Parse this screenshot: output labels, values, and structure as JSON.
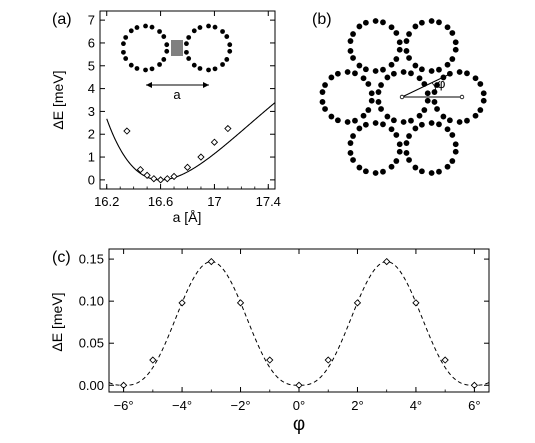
{
  "chart_data": [
    {
      "panel": "(a)",
      "type": "scatter",
      "xlabel": "a [Å]",
      "ylabel": "ΔE [meV]",
      "xlim": [
        16.15,
        17.45
      ],
      "ylim": [
        -0.4,
        7.4
      ],
      "xticks": [
        16.2,
        16.6,
        17,
        17.4
      ],
      "xtick_labels": [
        "16.2",
        "16.6",
        "17",
        "17.4"
      ],
      "yticks": [
        0,
        1,
        2,
        3,
        4,
        5,
        6,
        7
      ],
      "ytick_labels": [
        "0",
        "1",
        "2",
        "3",
        "4",
        "5",
        "6",
        "7"
      ],
      "points": [
        {
          "x": 16.35,
          "y": 2.14
        },
        {
          "x": 16.45,
          "y": 0.45
        },
        {
          "x": 16.5,
          "y": 0.2
        },
        {
          "x": 16.55,
          "y": 0.05
        },
        {
          "x": 16.6,
          "y": 0.0
        },
        {
          "x": 16.65,
          "y": 0.05
        },
        {
          "x": 16.7,
          "y": 0.15
        },
        {
          "x": 16.8,
          "y": 0.55
        },
        {
          "x": 16.9,
          "y": 1.0
        },
        {
          "x": 17.0,
          "y": 1.65
        },
        {
          "x": 17.1,
          "y": 2.25
        }
      ],
      "fit_curve": "solid",
      "inset_label": "a",
      "grid": false
    },
    {
      "panel": "(b)",
      "type": "diagram",
      "angle_label": "φ"
    },
    {
      "panel": "(c)",
      "type": "scatter",
      "xlabel": "φ",
      "ylabel": "ΔE [meV]",
      "xlim": [
        -6.5,
        6.5
      ],
      "ylim": [
        -0.008,
        0.162
      ],
      "xticks": [
        -6,
        -4,
        -2,
        0,
        2,
        4,
        6
      ],
      "xtick_labels": [
        "−6°",
        "−4°",
        "−2°",
        "0°",
        "2°",
        "4°",
        "6°"
      ],
      "yticks": [
        0,
        0.05,
        0.1,
        0.15
      ],
      "ytick_labels": [
        "0.00",
        "0.05",
        "0.10",
        "0.15"
      ],
      "points": [
        {
          "x": -6,
          "y": 0.0
        },
        {
          "x": -5,
          "y": 0.03
        },
        {
          "x": -4,
          "y": 0.098
        },
        {
          "x": -3,
          "y": 0.147
        },
        {
          "x": -2,
          "y": 0.098
        },
        {
          "x": -1,
          "y": 0.03
        },
        {
          "x": 0,
          "y": 0.0
        },
        {
          "x": 1,
          "y": 0.03
        },
        {
          "x": 2,
          "y": 0.098
        },
        {
          "x": 3,
          "y": 0.147
        },
        {
          "x": 4,
          "y": 0.098
        },
        {
          "x": 5,
          "y": 0.03
        },
        {
          "x": 6,
          "y": 0.0
        }
      ],
      "fit_curve": "dashed",
      "grid": false
    }
  ]
}
